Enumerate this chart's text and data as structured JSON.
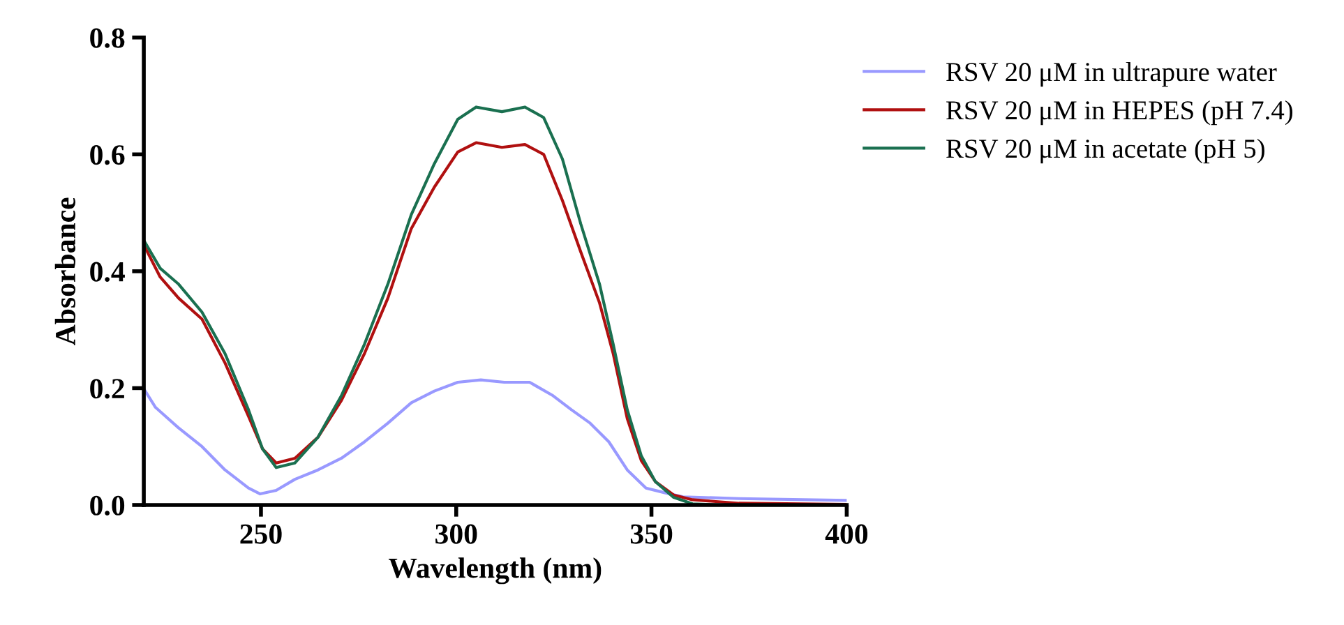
{
  "chart_data": {
    "type": "line",
    "xlabel": "Wavelength (nm)",
    "ylabel": "Absorbance",
    "xlim": [
      220,
      400
    ],
    "xticks": [
      250,
      300,
      350,
      400
    ],
    "ylim": [
      0,
      0.8
    ],
    "yticks": [
      {
        "value": 0,
        "label": "0.0"
      },
      0.2,
      0.4,
      0.6,
      0.8
    ],
    "grid": false,
    "legend": "top right",
    "marker": "none",
    "line_style": "solid",
    "series": [
      {
        "name": "RSV 20 μM in ultrapure water",
        "color": "#9999ff",
        "x": [
          220,
          223,
          228.9,
          234.9,
          240.8,
          246.8,
          249.8,
          253.9,
          258.7,
          264.6,
          270.6,
          276.5,
          282.5,
          288.5,
          294.4,
          300.4,
          306.3,
          312.3,
          318.8,
          324.8,
          329.5,
          334.3,
          339.1,
          343.8,
          348.6,
          353.4,
          358.1,
          372.4,
          399.8
        ],
        "values": [
          0.199,
          0.167,
          0.132,
          0.1,
          0.06,
          0.029,
          0.019,
          0.025,
          0.044,
          0.06,
          0.08,
          0.108,
          0.14,
          0.175,
          0.195,
          0.21,
          0.214,
          0.21,
          0.21,
          0.187,
          0.163,
          0.14,
          0.108,
          0.06,
          0.029,
          0.021,
          0.014,
          0.011,
          0.008
        ]
      },
      {
        "name": "RSV 20 μM in HEPES (pH 7.4)",
        "color": "#b01010",
        "x": [
          220,
          224.2,
          228.9,
          234.9,
          240.8,
          246.8,
          250.4,
          253.9,
          258.7,
          264.6,
          270.6,
          276.5,
          282.5,
          288.5,
          294.4,
          300.4,
          305.1,
          311.7,
          317.6,
          322.4,
          327.2,
          331.9,
          336.7,
          340.2,
          343.8,
          347.4,
          351,
          355.7,
          360.5,
          372.4,
          399.8
        ],
        "values": [
          0.445,
          0.39,
          0.354,
          0.318,
          0.243,
          0.152,
          0.096,
          0.072,
          0.08,
          0.116,
          0.179,
          0.259,
          0.354,
          0.473,
          0.544,
          0.604,
          0.62,
          0.612,
          0.617,
          0.6,
          0.521,
          0.433,
          0.346,
          0.259,
          0.148,
          0.076,
          0.04,
          0.017,
          0.009,
          0.003,
          0.001
        ]
      },
      {
        "name": "RSV 20 μM in acetate (pH 5)",
        "color": "#1a7050",
        "x": [
          220,
          224.2,
          228.9,
          234.9,
          240.8,
          246.8,
          250.4,
          253.9,
          258.7,
          264.6,
          270.6,
          276.5,
          282.5,
          288.5,
          294.4,
          300.4,
          305.1,
          311.7,
          317.6,
          322.4,
          327.2,
          331.9,
          336.7,
          340.2,
          343.8,
          347.4,
          351,
          355.7,
          360.5,
          367.6
        ],
        "values": [
          0.453,
          0.405,
          0.378,
          0.33,
          0.259,
          0.163,
          0.096,
          0.064,
          0.072,
          0.116,
          0.187,
          0.275,
          0.378,
          0.497,
          0.584,
          0.66,
          0.681,
          0.673,
          0.681,
          0.663,
          0.592,
          0.481,
          0.378,
          0.275,
          0.163,
          0.084,
          0.04,
          0.013,
          0.002,
          0.0
        ]
      }
    ]
  }
}
